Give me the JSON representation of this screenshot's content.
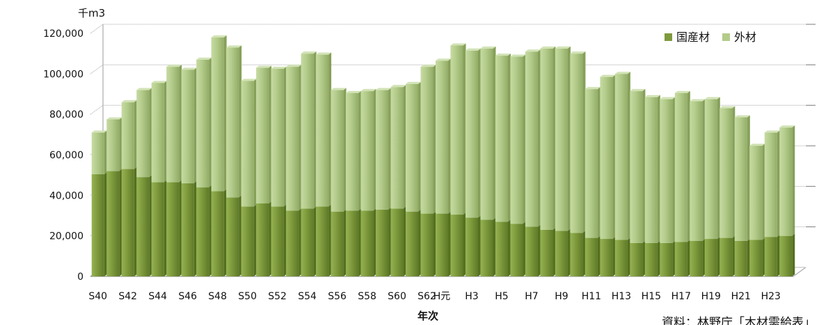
{
  "chart_data": {
    "type": "bar",
    "stacked": true,
    "categories": [
      "S40",
      "S41",
      "S42",
      "S43",
      "S44",
      "S45",
      "S46",
      "S47",
      "S48",
      "S49",
      "S50",
      "S51",
      "S52",
      "S53",
      "S54",
      "S55",
      "S56",
      "S57",
      "S58",
      "S59",
      "S60",
      "S61",
      "S62",
      "H元",
      "H2",
      "H3",
      "H4",
      "H5",
      "H6",
      "H7",
      "H8",
      "H9",
      "H10",
      "H11",
      "H12",
      "H13",
      "H14",
      "H15",
      "H16",
      "H17",
      "H18",
      "H19",
      "H20",
      "H21",
      "H22",
      "H23",
      "H24"
    ],
    "x_tick_labels": [
      "S40",
      "S42",
      "S44",
      "S46",
      "S48",
      "S50",
      "S52",
      "S54",
      "S56",
      "S58",
      "S60",
      "S62",
      "H元",
      "H3",
      "H5",
      "H7",
      "H9",
      "H11",
      "H13",
      "H15",
      "H17",
      "H19",
      "H21",
      "H23"
    ],
    "series": [
      {
        "name": "国産材",
        "color": "#7e9a3c",
        "values": [
          50400,
          52000,
          53000,
          49000,
          46500,
          46500,
          46000,
          44000,
          42000,
          39000,
          34500,
          36000,
          34500,
          32500,
          33500,
          34500,
          32000,
          32500,
          32500,
          33000,
          33500,
          32000,
          31000,
          31000,
          30500,
          29000,
          28000,
          27000,
          26000,
          24500,
          23000,
          22500,
          21500,
          19000,
          18500,
          18000,
          16500,
          16500,
          16500,
          17000,
          17500,
          18500,
          19000,
          17500,
          18000,
          19500,
          20000
        ]
      },
      {
        "name": "外材",
        "color": "#b3cb8a",
        "values": [
          20600,
          25500,
          33000,
          43000,
          49000,
          57000,
          56000,
          63000,
          76000,
          74000,
          62000,
          67000,
          68000,
          71000,
          76500,
          75000,
          60000,
          58000,
          59000,
          59000,
          60000,
          63000,
          72500,
          75500,
          83500,
          82500,
          84500,
          82000,
          82500,
          86500,
          89500,
          90000,
          88500,
          73500,
          80000,
          82000,
          75000,
          72000,
          71000,
          73500,
          69000,
          69000,
          64000,
          61000,
          46500,
          51500,
          53500
        ]
      }
    ],
    "ylabel": "千m3",
    "xlabel": "年次",
    "y_tick_labels": [
      "0",
      "20,000",
      "40,000",
      "60,000",
      "80,000",
      "100,000",
      "120,000"
    ],
    "ylim": [
      0,
      120000
    ],
    "grid": true,
    "legend_position": "top-right",
    "source_note": "資料：林野庁「木材需給表」"
  }
}
